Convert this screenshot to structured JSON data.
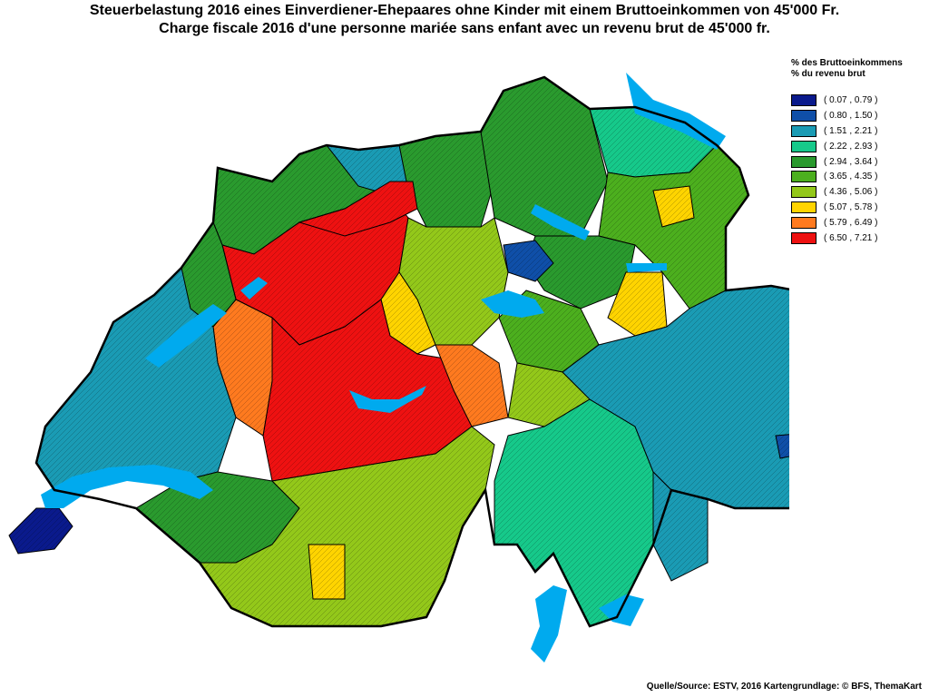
{
  "titles": {
    "de": "Steuerbelastung 2016 eines Einverdiener-Ehepaares ohne Kinder mit einem Bruttoeinkommen von 45'000 Fr.",
    "fr": "Charge fiscale 2016 d'une personne mariée sans enfant avec un revenu brut de 45'000 fr."
  },
  "legend": {
    "header_de": "% des Bruttoeinkommens",
    "header_fr": "% du revenu brut",
    "classes": [
      {
        "label": "( 0.07 , 0.79 )",
        "color": "#0a1a8c"
      },
      {
        "label": "( 0.80 , 1.50 )",
        "color": "#0f4fa8"
      },
      {
        "label": "( 1.51 , 2.21 )",
        "color": "#1a9bb4"
      },
      {
        "label": "( 2.22 , 2.93 )",
        "color": "#16c98a"
      },
      {
        "label": "( 2.94 , 3.64 )",
        "color": "#2a9a2e"
      },
      {
        "label": "( 3.65 , 4.35 )",
        "color": "#4caf1e"
      },
      {
        "label": "( 4.36 , 5.06 )",
        "color": "#93c81a"
      },
      {
        "label": "( 5.07 , 5.78 )",
        "color": "#ffd400"
      },
      {
        "label": "( 5.79 , 6.49 )",
        "color": "#ff7a1f"
      },
      {
        "label": "( 6.50 , 7.21 )",
        "color": "#ee1111"
      }
    ]
  },
  "map": {
    "lake_color": "#00aaee",
    "border_color": "#000000"
  },
  "source": "Quelle/Source: ESTV, 2016 Kartengrundlage: © BFS, ThemaKart"
}
